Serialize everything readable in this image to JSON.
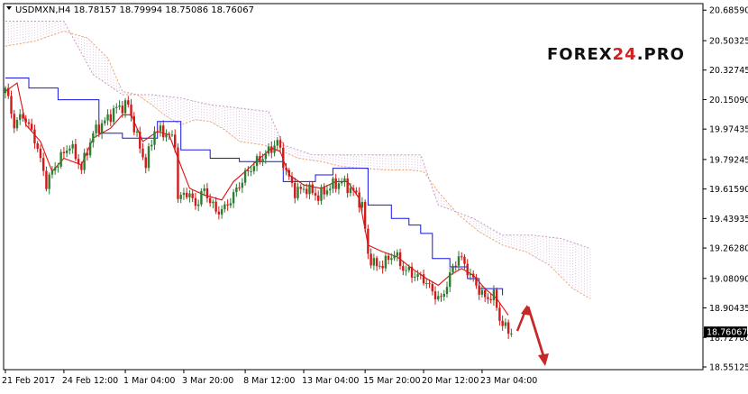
{
  "chart_data": {
    "type": "candlestick",
    "symbol_header": "USDMXN,H4  18.78157 18.79994 18.75086 18.76067",
    "ylim": [
      18.535,
      20.725
    ],
    "y_ticks": [
      "20.68590",
      "20.50325",
      "20.32745",
      "20.15090",
      "19.97435",
      "19.79245",
      "19.61590",
      "19.43935",
      "19.26280",
      "19.08090",
      "18.90435",
      "18.72780",
      "18.55125"
    ],
    "x_ticks": [
      {
        "label": "21 Feb 2017",
        "index": 0
      },
      {
        "label": "24 Feb 12:00",
        "index": 20
      },
      {
        "label": "1 Mar 04:00",
        "index": 41
      },
      {
        "label": "3 Mar 20:00",
        "index": 61
      },
      {
        "label": "8 Mar 12:00",
        "index": 82
      },
      {
        "label": "13 Mar 04:00",
        "index": 102
      },
      {
        "label": "15 Mar 20:00",
        "index": 123
      },
      {
        "label": "20 Mar 12:00",
        "index": 143
      },
      {
        "label": "23 Mar 04:00",
        "index": 163
      }
    ],
    "current_price": "18.76067",
    "colors": {
      "bull": "#2e7d32",
      "bear": "#d11a1a",
      "tenkan": "#e01010",
      "kijun": "#1515e8",
      "span": "#f4a46a",
      "cloud": "#c89ac8",
      "arrow": "#c62828"
    },
    "close_anchors": [
      [
        0,
        20.22
      ],
      [
        3,
        20.0
      ],
      [
        6,
        20.06
      ],
      [
        10,
        19.92
      ],
      [
        14,
        19.65
      ],
      [
        18,
        19.78
      ],
      [
        22,
        19.88
      ],
      [
        26,
        19.74
      ],
      [
        30,
        19.95
      ],
      [
        34,
        20.02
      ],
      [
        38,
        20.1
      ],
      [
        42,
        20.12
      ],
      [
        45,
        19.92
      ],
      [
        48,
        19.76
      ],
      [
        51,
        19.97
      ],
      [
        55,
        19.95
      ],
      [
        58,
        19.9
      ],
      [
        59,
        19.55
      ],
      [
        62,
        19.6
      ],
      [
        65,
        19.52
      ],
      [
        68,
        19.61
      ],
      [
        72,
        19.48
      ],
      [
        75,
        19.5
      ],
      [
        78,
        19.58
      ],
      [
        82,
        19.7
      ],
      [
        86,
        19.78
      ],
      [
        90,
        19.84
      ],
      [
        93,
        19.9
      ],
      [
        96,
        19.72
      ],
      [
        99,
        19.6
      ],
      [
        103,
        19.62
      ],
      [
        107,
        19.57
      ],
      [
        111,
        19.63
      ],
      [
        115,
        19.66
      ],
      [
        119,
        19.6
      ],
      [
        122,
        19.52
      ],
      [
        124,
        19.22
      ],
      [
        127,
        19.15
      ],
      [
        130,
        19.18
      ],
      [
        133,
        19.23
      ],
      [
        136,
        19.14
      ],
      [
        140,
        19.1
      ],
      [
        143,
        19.08
      ],
      [
        146,
        19.0
      ],
      [
        149,
        18.95
      ],
      [
        152,
        19.1
      ],
      [
        155,
        19.22
      ],
      [
        158,
        19.13
      ],
      [
        161,
        19.04
      ],
      [
        164,
        18.96
      ],
      [
        167,
        18.98
      ],
      [
        169,
        18.84
      ],
      [
        171,
        18.78
      ],
      [
        173,
        18.76
      ]
    ],
    "span_a": [
      [
        0,
        20.47
      ],
      [
        10,
        20.5
      ],
      [
        20,
        20.56
      ],
      [
        28,
        20.52
      ],
      [
        35,
        20.4
      ],
      [
        40,
        20.2
      ],
      [
        45,
        20.18
      ],
      [
        50,
        20.12
      ],
      [
        55,
        20.05
      ],
      [
        60,
        20.0
      ],
      [
        65,
        20.03
      ],
      [
        70,
        20.02
      ],
      [
        75,
        19.97
      ],
      [
        80,
        19.9
      ],
      [
        88,
        19.88
      ],
      [
        95,
        19.84
      ],
      [
        100,
        19.8
      ],
      [
        108,
        19.78
      ],
      [
        115,
        19.75
      ],
      [
        122,
        19.74
      ],
      [
        130,
        19.73
      ],
      [
        138,
        19.73
      ],
      [
        143,
        19.72
      ],
      [
        148,
        19.6
      ],
      [
        155,
        19.46
      ],
      [
        162,
        19.36
      ],
      [
        170,
        19.28
      ],
      [
        178,
        19.24
      ],
      [
        186,
        19.16
      ],
      [
        194,
        19.02
      ],
      [
        200,
        18.96
      ]
    ],
    "span_b": [
      [
        0,
        20.62
      ],
      [
        20,
        20.62
      ],
      [
        30,
        20.3
      ],
      [
        40,
        20.18
      ],
      [
        50,
        20.18
      ],
      [
        60,
        20.16
      ],
      [
        70,
        20.12
      ],
      [
        80,
        20.1
      ],
      [
        90,
        20.08
      ],
      [
        95,
        19.88
      ],
      [
        105,
        19.82
      ],
      [
        115,
        19.82
      ],
      [
        125,
        19.82
      ],
      [
        135,
        19.82
      ],
      [
        142,
        19.82
      ],
      [
        148,
        19.52
      ],
      [
        160,
        19.44
      ],
      [
        170,
        19.34
      ],
      [
        180,
        19.34
      ],
      [
        190,
        19.32
      ],
      [
        200,
        19.26
      ]
    ],
    "kijun": [
      [
        0,
        20.28
      ],
      [
        5,
        20.28
      ],
      [
        8,
        20.22
      ],
      [
        12,
        20.22
      ],
      [
        18,
        20.15
      ],
      [
        30,
        20.15
      ],
      [
        32,
        19.95
      ],
      [
        38,
        19.95
      ],
      [
        40,
        19.92
      ],
      [
        48,
        19.92
      ],
      [
        52,
        20.02
      ],
      [
        58,
        20.02
      ],
      [
        60,
        19.85
      ],
      [
        65,
        19.85
      ],
      [
        70,
        19.8
      ],
      [
        80,
        19.78
      ],
      [
        92,
        19.78
      ],
      [
        95,
        19.66
      ],
      [
        100,
        19.66
      ],
      [
        106,
        19.7
      ],
      [
        112,
        19.74
      ],
      [
        118,
        19.74
      ],
      [
        124,
        19.52
      ],
      [
        132,
        19.44
      ],
      [
        138,
        19.4
      ],
      [
        142,
        19.35
      ],
      [
        146,
        19.2
      ],
      [
        152,
        19.15
      ],
      [
        158,
        19.08
      ],
      [
        162,
        19.02
      ],
      [
        170,
        18.98
      ]
    ],
    "tenkan": [
      [
        0,
        20.2
      ],
      [
        4,
        20.25
      ],
      [
        7,
        20.0
      ],
      [
        12,
        19.9
      ],
      [
        16,
        19.72
      ],
      [
        20,
        19.8
      ],
      [
        26,
        19.76
      ],
      [
        30,
        19.92
      ],
      [
        36,
        19.98
      ],
      [
        40,
        20.06
      ],
      [
        43,
        20.06
      ],
      [
        47,
        19.9
      ],
      [
        52,
        19.96
      ],
      [
        56,
        19.94
      ],
      [
        59,
        19.8
      ],
      [
        63,
        19.62
      ],
      [
        68,
        19.58
      ],
      [
        74,
        19.55
      ],
      [
        78,
        19.66
      ],
      [
        82,
        19.72
      ],
      [
        87,
        19.8
      ],
      [
        91,
        19.86
      ],
      [
        94,
        19.84
      ],
      [
        97,
        19.7
      ],
      [
        102,
        19.64
      ],
      [
        108,
        19.62
      ],
      [
        113,
        19.66
      ],
      [
        117,
        19.66
      ],
      [
        121,
        19.56
      ],
      [
        124,
        19.28
      ],
      [
        129,
        19.24
      ],
      [
        134,
        19.21
      ],
      [
        139,
        19.14
      ],
      [
        144,
        19.08
      ],
      [
        148,
        19.04
      ],
      [
        152,
        19.1
      ],
      [
        156,
        19.14
      ],
      [
        160,
        19.1
      ],
      [
        164,
        19.02
      ],
      [
        168,
        18.96
      ],
      [
        172,
        18.86
      ]
    ]
  }
}
